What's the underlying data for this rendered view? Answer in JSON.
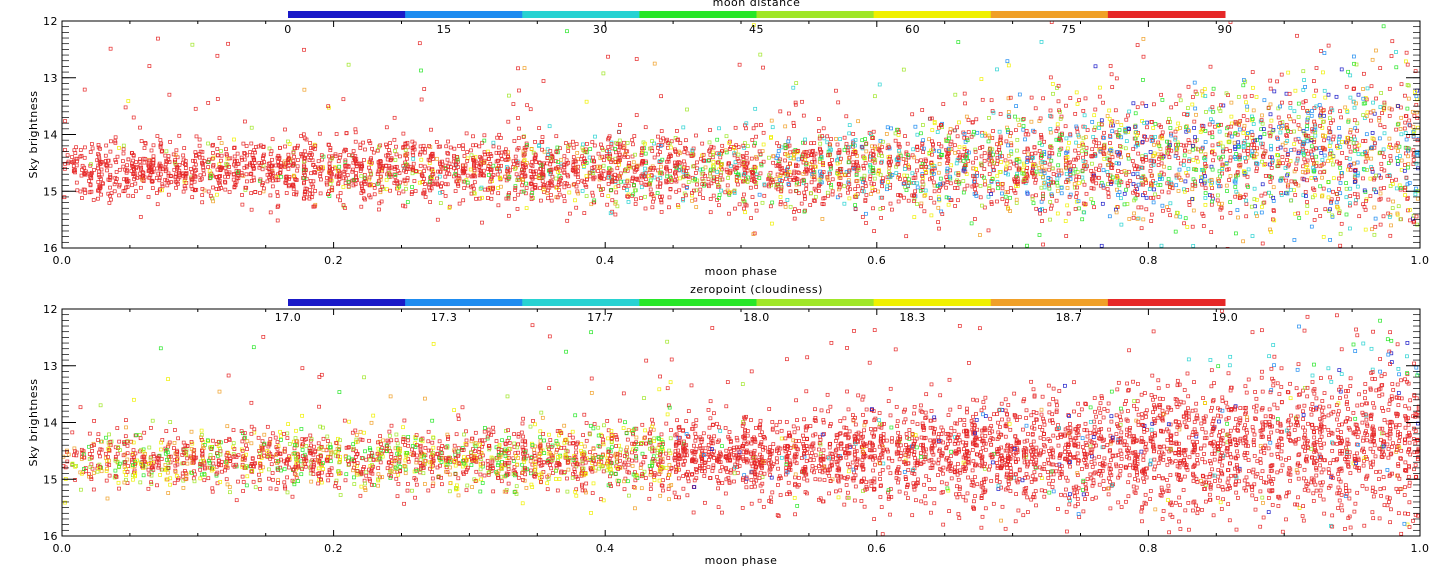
{
  "chart_data": [
    {
      "type": "scatter",
      "xlabel": "moon phase",
      "ylabel": "Sky brightness",
      "xlim": [
        0.0,
        1.0
      ],
      "ylim": [
        16,
        12
      ],
      "x_ticks": [
        "0.0",
        "0.2",
        "0.4",
        "0.6",
        "0.8",
        "1.0"
      ],
      "y_ticks": [
        "12",
        "13",
        "14",
        "15",
        "16"
      ],
      "colorbar": {
        "title": "moon distance",
        "tick_labels": [
          "0",
          "15",
          "30",
          "45",
          "60",
          "75",
          "90"
        ]
      }
    },
    {
      "type": "scatter",
      "xlabel": "moon phase",
      "ylabel": "Sky brightness",
      "xlim": [
        0.0,
        1.0
      ],
      "ylim": [
        16,
        12
      ],
      "x_ticks": [
        "0.0",
        "0.2",
        "0.4",
        "0.6",
        "0.8",
        "1.0"
      ],
      "y_ticks": [
        "12",
        "13",
        "14",
        "15",
        "16"
      ],
      "colorbar": {
        "title": "zeropoint (cloudiness)",
        "tick_labels": [
          "17.0",
          "17.3",
          "17.7",
          "18.0",
          "18.3",
          "18.7",
          "19.0"
        ]
      }
    }
  ],
  "colors": {
    "colorbar_stops": [
      "#1a1ac8",
      "#1e8cf0",
      "#28d2d2",
      "#28e628",
      "#a0e628",
      "#f0f000",
      "#f0a028",
      "#e62828"
    ],
    "marker_default": "#e62020"
  }
}
